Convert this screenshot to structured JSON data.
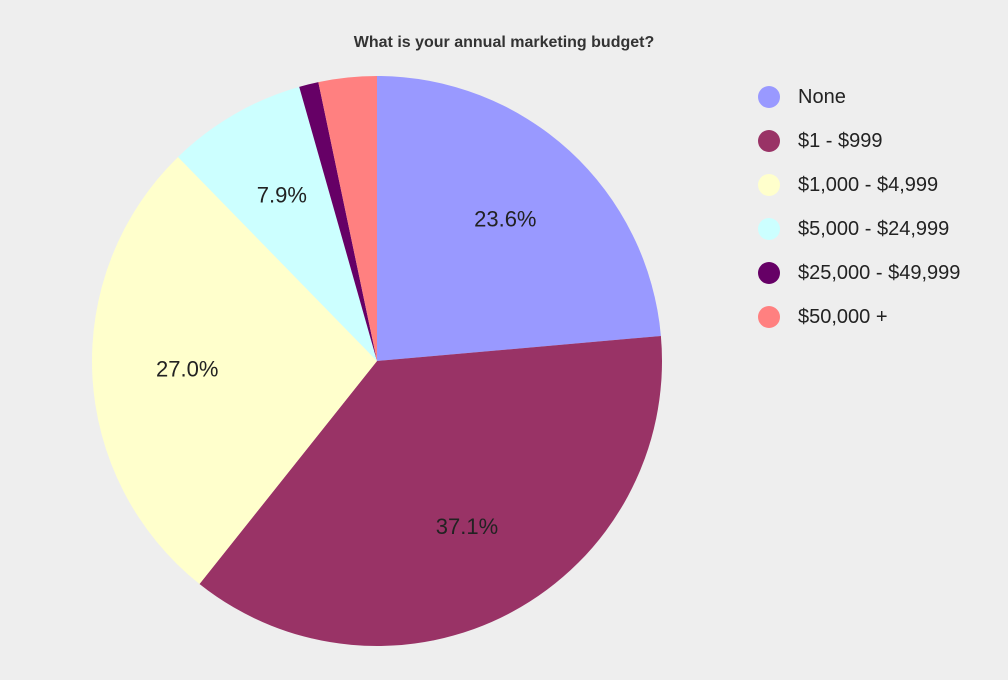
{
  "chart_data": {
    "type": "pie",
    "title": "What is your annual marketing budget?",
    "categories": [
      "None",
      "$1 - $999",
      "$1,000 - $4,999",
      "$5,000 - $24,999",
      "$25,000 - $49,999",
      "$50,000 +"
    ],
    "values": [
      23.6,
      37.1,
      27.0,
      7.9,
      1.1,
      3.3
    ],
    "data_labels": [
      "23.6%",
      "37.1%",
      "27.0%",
      "7.9%",
      "",
      ""
    ],
    "colors": [
      "#9999ff",
      "#993366",
      "#ffffcc",
      "#ccffff",
      "#660066",
      "#ff8080"
    ],
    "start_angle_deg": 0,
    "direction": "clockwise",
    "legend_position": "right"
  }
}
